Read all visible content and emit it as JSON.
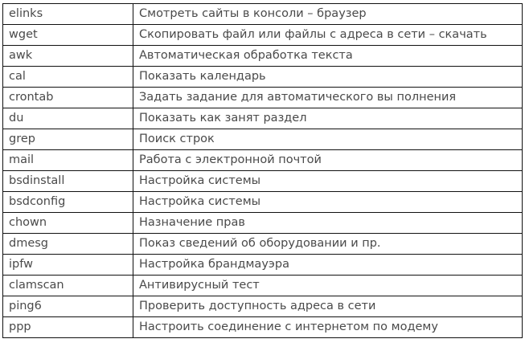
{
  "table": {
    "rows": [
      {
        "command": "elinks",
        "description": "Смотреть сайты в консоли – браузер"
      },
      {
        "command": "wget",
        "description": "Скопировать файл или файлы с адреса в сети – скачать"
      },
      {
        "command": "awk",
        "description": "Автоматическая обработка текста"
      },
      {
        "command": "cal",
        "description": "Показать календарь"
      },
      {
        "command": "crontab",
        "description": "Задать задание для автоматического вы полнения"
      },
      {
        "command": "du",
        "description": "Показать как занят раздел"
      },
      {
        "command": "grep",
        "description": "Поиск строк"
      },
      {
        "command": "mail",
        "description": "Работа с электронной почтой"
      },
      {
        "command": "bsdinstall",
        "description": "Настройка системы"
      },
      {
        "command": "bsdconfig",
        "description": "Настройка системы"
      },
      {
        "command": "chown",
        "description": "Назначение прав"
      },
      {
        "command": "dmesg",
        "description": "Показ сведений об оборудовании и пр."
      },
      {
        "command": "ipfw",
        "description": "Настройка брандмауэра"
      },
      {
        "command": "clamscan",
        "description": "Антивирусный тест"
      },
      {
        "command": "ping6",
        "description": "Проверить доступность адреса в сети"
      },
      {
        "command": "ppp",
        "description": "Настроить соединение с интернетом по модему"
      }
    ]
  }
}
